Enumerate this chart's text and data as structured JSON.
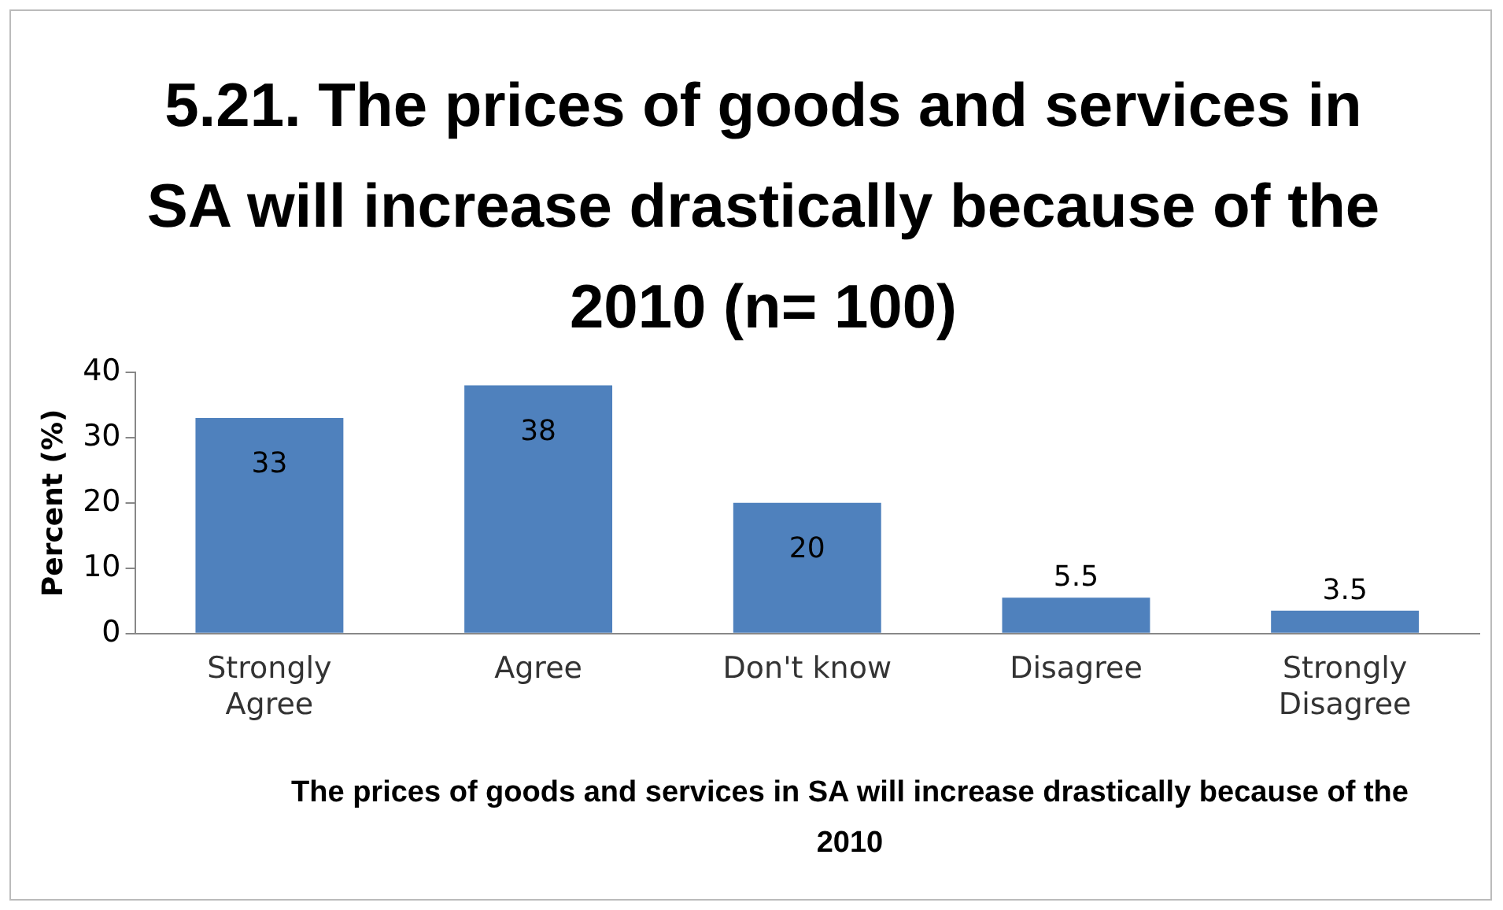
{
  "chart_data": {
    "type": "bar",
    "title": "5.21. The prices of goods and services in SA will increase drastically because of  the 2010 (n= 100)",
    "xlabel": "The prices of goods and services in SA will increase drastically because of  the 2010",
    "ylabel": "Percent (%)",
    "categories": [
      "Strongly Agree",
      "Agree",
      "Don't know",
      "Disagree",
      "Strongly Disagree"
    ],
    "values": [
      33,
      38,
      20,
      5.5,
      3.5
    ],
    "color": "#4f81bd",
    "ylim": [
      0,
      40
    ],
    "yticks": [
      0,
      10,
      20,
      30,
      40
    ],
    "grid": false,
    "legend": false,
    "data_labels": true
  }
}
